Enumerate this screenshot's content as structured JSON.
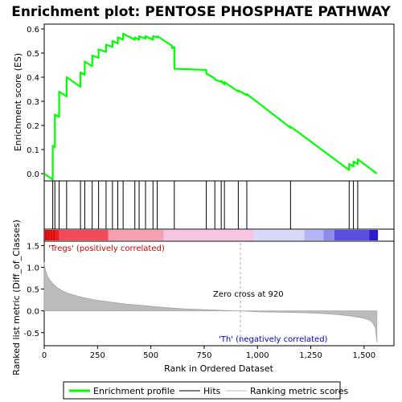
{
  "chart_data": {
    "type": "line",
    "title": "Enrichment plot: PENTOSE PHOSPHATE PATHWAY",
    "top_panel": {
      "ylabel": "Enrichment score (ES)",
      "ylim": [
        -0.03,
        0.62
      ],
      "yticks": [
        0.0,
        0.1,
        0.2,
        0.3,
        0.4,
        0.5,
        0.6
      ],
      "ytick_labels": [
        "0.0",
        "0.1",
        "0.2",
        "0.3",
        "0.4",
        "0.5",
        "0.6"
      ],
      "series": {
        "name": "Enrichment profile",
        "color": "#00ff00",
        "x": [
          0,
          40,
          40,
          50,
          50,
          70,
          70,
          105,
          105,
          170,
          170,
          190,
          190,
          225,
          225,
          255,
          255,
          290,
          290,
          320,
          320,
          345,
          345,
          370,
          370,
          425,
          425,
          445,
          445,
          475,
          475,
          510,
          510,
          530,
          530,
          600,
          600,
          610,
          610,
          760,
          760,
          800,
          800,
          830,
          830,
          845,
          845,
          910,
          910,
          950,
          950,
          1155,
          1155,
          1430,
          1430,
          1450,
          1450,
          1470,
          1470,
          1560
        ],
        "y": [
          0.0,
          -0.025,
          0.115,
          0.11,
          0.245,
          0.235,
          0.34,
          0.32,
          0.4,
          0.36,
          0.42,
          0.41,
          0.465,
          0.445,
          0.49,
          0.48,
          0.515,
          0.505,
          0.535,
          0.525,
          0.55,
          0.54,
          0.565,
          0.555,
          0.58,
          0.555,
          0.565,
          0.555,
          0.57,
          0.56,
          0.57,
          0.555,
          0.57,
          0.565,
          0.57,
          0.53,
          0.52,
          0.525,
          0.435,
          0.43,
          0.415,
          0.395,
          0.39,
          0.38,
          0.385,
          0.37,
          0.38,
          0.34,
          0.345,
          0.325,
          0.33,
          0.19,
          0.195,
          0.015,
          0.04,
          0.03,
          0.05,
          0.04,
          0.06,
          0.0
        ]
      }
    },
    "hits": {
      "name": "Hits",
      "x": [
        40,
        50,
        70,
        105,
        170,
        190,
        225,
        255,
        290,
        320,
        345,
        370,
        425,
        445,
        475,
        510,
        530,
        610,
        760,
        800,
        830,
        845,
        910,
        950,
        1155,
        1430,
        1450,
        1470
      ]
    },
    "rank_bar": {
      "segments": [
        {
          "from": 0,
          "to": 70,
          "color": "#ee1c1c"
        },
        {
          "from": 70,
          "to": 300,
          "color": "#f24c5a"
        },
        {
          "from": 300,
          "to": 560,
          "color": "#f7a0b2"
        },
        {
          "from": 560,
          "to": 980,
          "color": "#f7c4e4"
        },
        {
          "from": 980,
          "to": 1220,
          "color": "#d8d8f8"
        },
        {
          "from": 1220,
          "to": 1310,
          "color": "#b4b4f4"
        },
        {
          "from": 1310,
          "to": 1360,
          "color": "#8c8cee"
        },
        {
          "from": 1360,
          "to": 1525,
          "color": "#5a4ee0"
        },
        {
          "from": 1525,
          "to": 1565,
          "color": "#2a1cc8"
        }
      ]
    },
    "bottom_panel": {
      "ylabel": "Ranked list metric (Diff_of_Classes)",
      "xlabel": "Rank in Ordered Dataset",
      "xlim": [
        0,
        1640
      ],
      "ylim": [
        -0.8,
        1.6
      ],
      "xticks": [
        0,
        250,
        500,
        750,
        1000,
        1250,
        1500
      ],
      "xtick_labels": [
        "0",
        "250",
        "500",
        "750",
        "1,000",
        "1,250",
        "1,500"
      ],
      "yticks": [
        -0.5,
        0.0,
        0.5,
        1.0,
        1.5
      ],
      "ytick_labels": [
        "-0.5",
        "0.0",
        "0.5",
        "1.0",
        "1.5"
      ],
      "series": {
        "name": "Ranking metric scores",
        "x": [
          0,
          3,
          8,
          15,
          25,
          40,
          60,
          85,
          120,
          170,
          230,
          300,
          380,
          470,
          560,
          650,
          750,
          850,
          920,
          1000,
          1100,
          1200,
          1300,
          1380,
          1440,
          1490,
          1520,
          1540,
          1553,
          1560
        ],
        "y": [
          1.12,
          1.0,
          0.9,
          0.8,
          0.72,
          0.63,
          0.54,
          0.46,
          0.39,
          0.32,
          0.26,
          0.21,
          0.16,
          0.12,
          0.08,
          0.05,
          0.03,
          0.01,
          0.0,
          -0.02,
          -0.03,
          -0.04,
          -0.06,
          -0.09,
          -0.12,
          -0.16,
          -0.2,
          -0.27,
          -0.4,
          -0.72
        ]
      },
      "zero_cross": 920,
      "annotations": {
        "positive": "'Tregs' (positively correlated)",
        "negative": "'Th' (negatively correlated)",
        "zero_cross": "Zero cross at 920"
      },
      "annotation_colors": {
        "positive": "#cc0000",
        "negative": "#0000cc"
      }
    },
    "legend": {
      "placement": "bottom",
      "entries": [
        {
          "label": "Enrichment profile",
          "color": "#00ff00"
        },
        {
          "label": "Hits",
          "color": "#000000"
        },
        {
          "label": "Ranking metric scores",
          "color": "#bbbbbb"
        }
      ]
    }
  }
}
